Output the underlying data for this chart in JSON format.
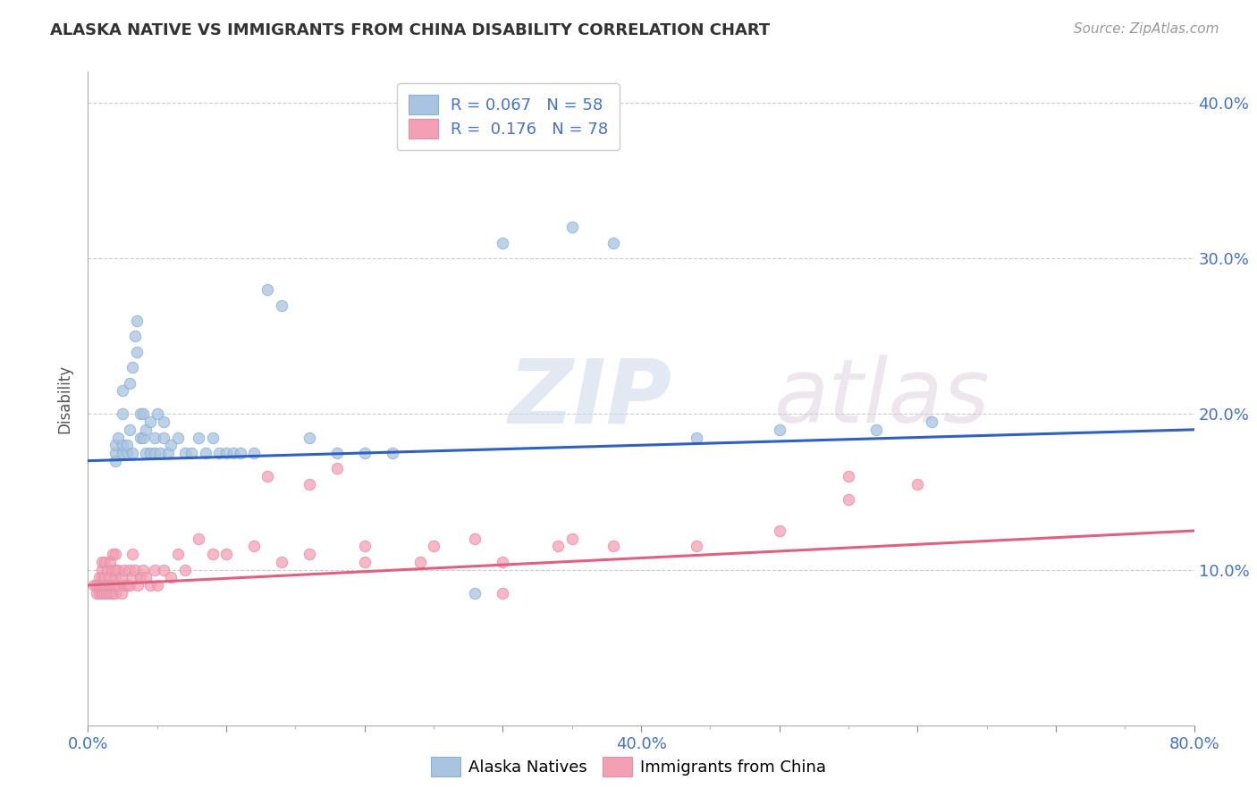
{
  "title": "ALASKA NATIVE VS IMMIGRANTS FROM CHINA DISABILITY CORRELATION CHART",
  "source": "Source: ZipAtlas.com",
  "ylabel": "Disability",
  "xlim": [
    0.0,
    0.8
  ],
  "ylim": [
    0.0,
    0.42
  ],
  "blue_R": 0.067,
  "blue_N": 58,
  "pink_R": 0.176,
  "pink_N": 78,
  "blue_color": "#a8c4e0",
  "pink_color": "#f4a0b4",
  "blue_line_color": "#3060c0",
  "pink_line_color": "#e06080",
  "legend_label_blue": "Alaska Natives",
  "legend_label_pink": "Immigrants from China",
  "tick_label_color": "#4472c4",
  "blue_line_x0": 0.0,
  "blue_line_y0": 0.17,
  "blue_line_x1": 0.8,
  "blue_line_y1": 0.19,
  "pink_line_x0": 0.0,
  "pink_line_y0": 0.09,
  "pink_line_x1": 0.8,
  "pink_line_y1": 0.125,
  "blue_scatter_x": [
    0.02,
    0.02,
    0.02,
    0.022,
    0.025,
    0.025,
    0.025,
    0.025,
    0.028,
    0.028,
    0.03,
    0.03,
    0.032,
    0.032,
    0.034,
    0.035,
    0.035,
    0.038,
    0.038,
    0.04,
    0.04,
    0.042,
    0.042,
    0.045,
    0.045,
    0.048,
    0.048,
    0.05,
    0.052,
    0.055,
    0.055,
    0.058,
    0.06,
    0.065,
    0.07,
    0.075,
    0.08,
    0.085,
    0.09,
    0.095,
    0.1,
    0.105,
    0.11,
    0.12,
    0.13,
    0.14,
    0.16,
    0.18,
    0.2,
    0.22,
    0.28,
    0.3,
    0.35,
    0.38,
    0.44,
    0.5,
    0.57,
    0.61
  ],
  "blue_scatter_y": [
    0.175,
    0.18,
    0.17,
    0.185,
    0.175,
    0.18,
    0.2,
    0.215,
    0.175,
    0.18,
    0.19,
    0.22,
    0.175,
    0.23,
    0.25,
    0.24,
    0.26,
    0.2,
    0.185,
    0.185,
    0.2,
    0.175,
    0.19,
    0.175,
    0.195,
    0.175,
    0.185,
    0.2,
    0.175,
    0.185,
    0.195,
    0.175,
    0.18,
    0.185,
    0.175,
    0.175,
    0.185,
    0.175,
    0.185,
    0.175,
    0.175,
    0.175,
    0.175,
    0.175,
    0.28,
    0.27,
    0.185,
    0.175,
    0.175,
    0.175,
    0.085,
    0.31,
    0.32,
    0.31,
    0.185,
    0.19,
    0.19,
    0.195
  ],
  "pink_scatter_x": [
    0.004,
    0.006,
    0.006,
    0.008,
    0.008,
    0.008,
    0.01,
    0.01,
    0.01,
    0.01,
    0.01,
    0.012,
    0.012,
    0.012,
    0.012,
    0.014,
    0.014,
    0.014,
    0.016,
    0.016,
    0.016,
    0.016,
    0.018,
    0.018,
    0.018,
    0.018,
    0.02,
    0.02,
    0.02,
    0.02,
    0.02,
    0.022,
    0.022,
    0.024,
    0.024,
    0.026,
    0.026,
    0.028,
    0.03,
    0.03,
    0.032,
    0.032,
    0.034,
    0.036,
    0.038,
    0.04,
    0.042,
    0.045,
    0.048,
    0.05,
    0.055,
    0.06,
    0.065,
    0.07,
    0.08,
    0.09,
    0.1,
    0.12,
    0.14,
    0.16,
    0.2,
    0.24,
    0.28,
    0.3,
    0.34,
    0.38,
    0.44,
    0.5,
    0.55,
    0.6,
    0.13,
    0.16,
    0.18,
    0.2,
    0.25,
    0.3,
    0.35,
    0.55
  ],
  "pink_scatter_y": [
    0.09,
    0.085,
    0.09,
    0.085,
    0.09,
    0.095,
    0.085,
    0.09,
    0.095,
    0.1,
    0.105,
    0.085,
    0.09,
    0.095,
    0.105,
    0.085,
    0.09,
    0.1,
    0.085,
    0.09,
    0.095,
    0.105,
    0.085,
    0.09,
    0.1,
    0.11,
    0.085,
    0.09,
    0.095,
    0.1,
    0.11,
    0.09,
    0.1,
    0.085,
    0.095,
    0.09,
    0.1,
    0.09,
    0.09,
    0.1,
    0.095,
    0.11,
    0.1,
    0.09,
    0.095,
    0.1,
    0.095,
    0.09,
    0.1,
    0.09,
    0.1,
    0.095,
    0.11,
    0.1,
    0.12,
    0.11,
    0.11,
    0.115,
    0.105,
    0.11,
    0.115,
    0.105,
    0.12,
    0.105,
    0.115,
    0.115,
    0.115,
    0.125,
    0.145,
    0.155,
    0.16,
    0.155,
    0.165,
    0.105,
    0.115,
    0.085,
    0.12,
    0.16
  ]
}
